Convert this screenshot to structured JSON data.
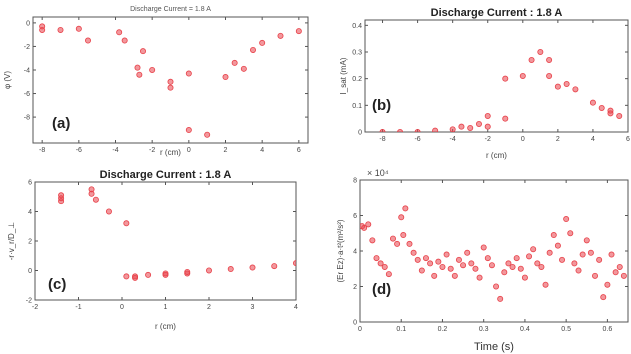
{
  "chart_data": [
    {
      "type": "scatter",
      "panel_label": "(a)",
      "title": "Discharge Current = 1.8 A",
      "xlabel": "r (cm)",
      "ylabel": "φ (V)",
      "xlim": [
        -8.5,
        6.5
      ],
      "ylim": [
        -10.2,
        0.5
      ],
      "xticks": [
        -8,
        -6,
        -4,
        -2,
        0,
        2,
        4,
        6
      ],
      "yticks": [
        -8,
        -6,
        -4,
        -2,
        0
      ],
      "xtick_labels": [
        "-8",
        "-6",
        "-4",
        "-2",
        "0",
        "2",
        "4",
        "6"
      ],
      "ytick_labels": [
        "-8",
        "-6",
        "-4",
        "-2",
        "0"
      ],
      "grid": false,
      "series": [
        {
          "color": "#e8424a",
          "x": [
            -8.0,
            -8.0,
            -7.0,
            -6.0,
            -5.5,
            -3.8,
            -3.5,
            -2.8,
            -2.7,
            -2.5,
            -2.0,
            -1.0,
            -1.0,
            0.0,
            0.0,
            1.0,
            2.0,
            2.5,
            3.0,
            3.5,
            4.0,
            5.0,
            6.0
          ],
          "y": [
            -0.3,
            -0.6,
            -0.6,
            -0.5,
            -1.5,
            -0.8,
            -1.5,
            -3.8,
            -4.4,
            -2.4,
            -4.0,
            -5.0,
            -5.5,
            -9.1,
            -4.3,
            -9.5,
            -4.6,
            -3.4,
            -3.9,
            -2.3,
            -1.7,
            -1.1,
            -0.7
          ]
        }
      ]
    },
    {
      "type": "scatter",
      "panel_label": "(b)",
      "title": "Discharge Current : 1.8 A",
      "xlabel": "r (cm)",
      "ylabel": "I_sat (mA)",
      "xlim": [
        -9,
        6
      ],
      "ylim": [
        0,
        0.42
      ],
      "xticks": [
        -8,
        -6,
        -4,
        -2,
        0,
        2,
        4,
        6
      ],
      "yticks": [
        0,
        0.1,
        0.2,
        0.3,
        0.4
      ],
      "xtick_labels": [
        "-8",
        "-6",
        "-4",
        "-2",
        "0",
        "2",
        "4",
        "6"
      ],
      "ytick_labels": [
        "0",
        "0.1",
        "0.2",
        "0.3",
        "0.4"
      ],
      "grid": false,
      "series": [
        {
          "color": "#e8424a",
          "x": [
            -8.0,
            -7.0,
            -6.0,
            -5.0,
            -4.0,
            -3.5,
            -3.0,
            -2.5,
            -2.0,
            -2.0,
            -1.0,
            -1.0,
            0.0,
            0.5,
            1.0,
            1.5,
            1.5,
            2.0,
            2.5,
            3.0,
            4.0,
            4.5,
            5.0,
            5.0,
            5.5
          ],
          "y": [
            0.0,
            0.0,
            0.0,
            0.005,
            0.01,
            0.02,
            0.015,
            0.03,
            0.06,
            0.02,
            0.05,
            0.2,
            0.21,
            0.27,
            0.3,
            0.21,
            0.27,
            0.17,
            0.18,
            0.16,
            0.11,
            0.09,
            0.07,
            0.08,
            0.06
          ]
        }
      ]
    },
    {
      "type": "scatter",
      "panel_label": "(c)",
      "title": "Discharge Current : 1.8 A",
      "xlabel": "r (cm)",
      "ylabel": "-r·v_r/D_⊥",
      "xlim": [
        -2,
        4
      ],
      "ylim": [
        -2,
        6
      ],
      "xticks": [
        -2,
        -1,
        0,
        1,
        2,
        3,
        4
      ],
      "yticks": [
        -2,
        0,
        2,
        4,
        6
      ],
      "xtick_labels": [
        "-2",
        "-1",
        "0",
        "1",
        "2",
        "3",
        "4"
      ],
      "ytick_labels": [
        "-2",
        "0",
        "2",
        "4",
        "6"
      ],
      "grid": false,
      "series": [
        {
          "color": "#e8424a",
          "x": [
            -1.4,
            -1.4,
            -1.4,
            -0.7,
            -0.7,
            -0.6,
            -0.3,
            0.1,
            0.1,
            0.3,
            0.3,
            0.6,
            1.0,
            1.0,
            1.5,
            1.5,
            2.0,
            2.5,
            3.0,
            3.5,
            4.0
          ],
          "y": [
            5.1,
            4.9,
            4.7,
            5.5,
            5.2,
            4.8,
            4.0,
            3.2,
            -0.4,
            -0.5,
            -0.4,
            -0.3,
            -0.3,
            -0.2,
            -0.2,
            -0.1,
            0.0,
            0.1,
            0.2,
            0.3,
            0.5
          ]
        }
      ]
    },
    {
      "type": "scatter",
      "panel_label": "(d)",
      "title": "",
      "xlabel": "Time (s)",
      "ylabel": "(Er Ez)·a·t²(m²/s²)",
      "exponent_label": "× 10⁴",
      "xlim": [
        0,
        0.65
      ],
      "ylim": [
        0,
        8
      ],
      "xticks": [
        0,
        0.1,
        0.2,
        0.3,
        0.4,
        0.5,
        0.6
      ],
      "yticks": [
        0,
        2,
        4,
        6,
        8
      ],
      "xtick_labels": [
        "0",
        "0.1",
        "0.2",
        "0.3",
        "0.4",
        "0.5",
        "0.6"
      ],
      "ytick_labels": [
        "0",
        "2",
        "4",
        "6",
        "8"
      ],
      "grid": false,
      "series": [
        {
          "color": "#e8424a",
          "x": [
            0.005,
            0.01,
            0.02,
            0.03,
            0.04,
            0.05,
            0.06,
            0.07,
            0.08,
            0.09,
            0.1,
            0.105,
            0.11,
            0.12,
            0.13,
            0.14,
            0.15,
            0.16,
            0.17,
            0.18,
            0.19,
            0.2,
            0.21,
            0.22,
            0.23,
            0.24,
            0.25,
            0.26,
            0.27,
            0.28,
            0.29,
            0.3,
            0.31,
            0.32,
            0.33,
            0.34,
            0.35,
            0.36,
            0.37,
            0.38,
            0.39,
            0.4,
            0.41,
            0.42,
            0.43,
            0.44,
            0.45,
            0.46,
            0.47,
            0.48,
            0.49,
            0.5,
            0.51,
            0.52,
            0.53,
            0.54,
            0.55,
            0.56,
            0.57,
            0.58,
            0.59,
            0.6,
            0.61,
            0.62,
            0.63,
            0.64
          ],
          "y": [
            5.4,
            5.3,
            5.5,
            4.6,
            3.6,
            3.3,
            3.1,
            2.7,
            4.7,
            4.4,
            5.9,
            4.9,
            6.4,
            4.4,
            3.9,
            3.5,
            2.9,
            3.6,
            3.3,
            2.6,
            3.4,
            3.1,
            3.8,
            3.0,
            2.6,
            3.5,
            3.2,
            3.9,
            3.3,
            3.0,
            2.5,
            4.2,
            3.6,
            3.2,
            2.0,
            1.3,
            2.8,
            3.3,
            3.1,
            3.6,
            3.0,
            2.5,
            3.7,
            4.1,
            3.3,
            3.1,
            2.1,
            3.9,
            4.9,
            4.3,
            3.5,
            5.8,
            5.0,
            3.3,
            2.9,
            3.8,
            4.6,
            3.9,
            2.6,
            3.5,
            1.4,
            2.1,
            3.8,
            2.8,
            3.1,
            2.6
          ]
        }
      ]
    }
  ]
}
